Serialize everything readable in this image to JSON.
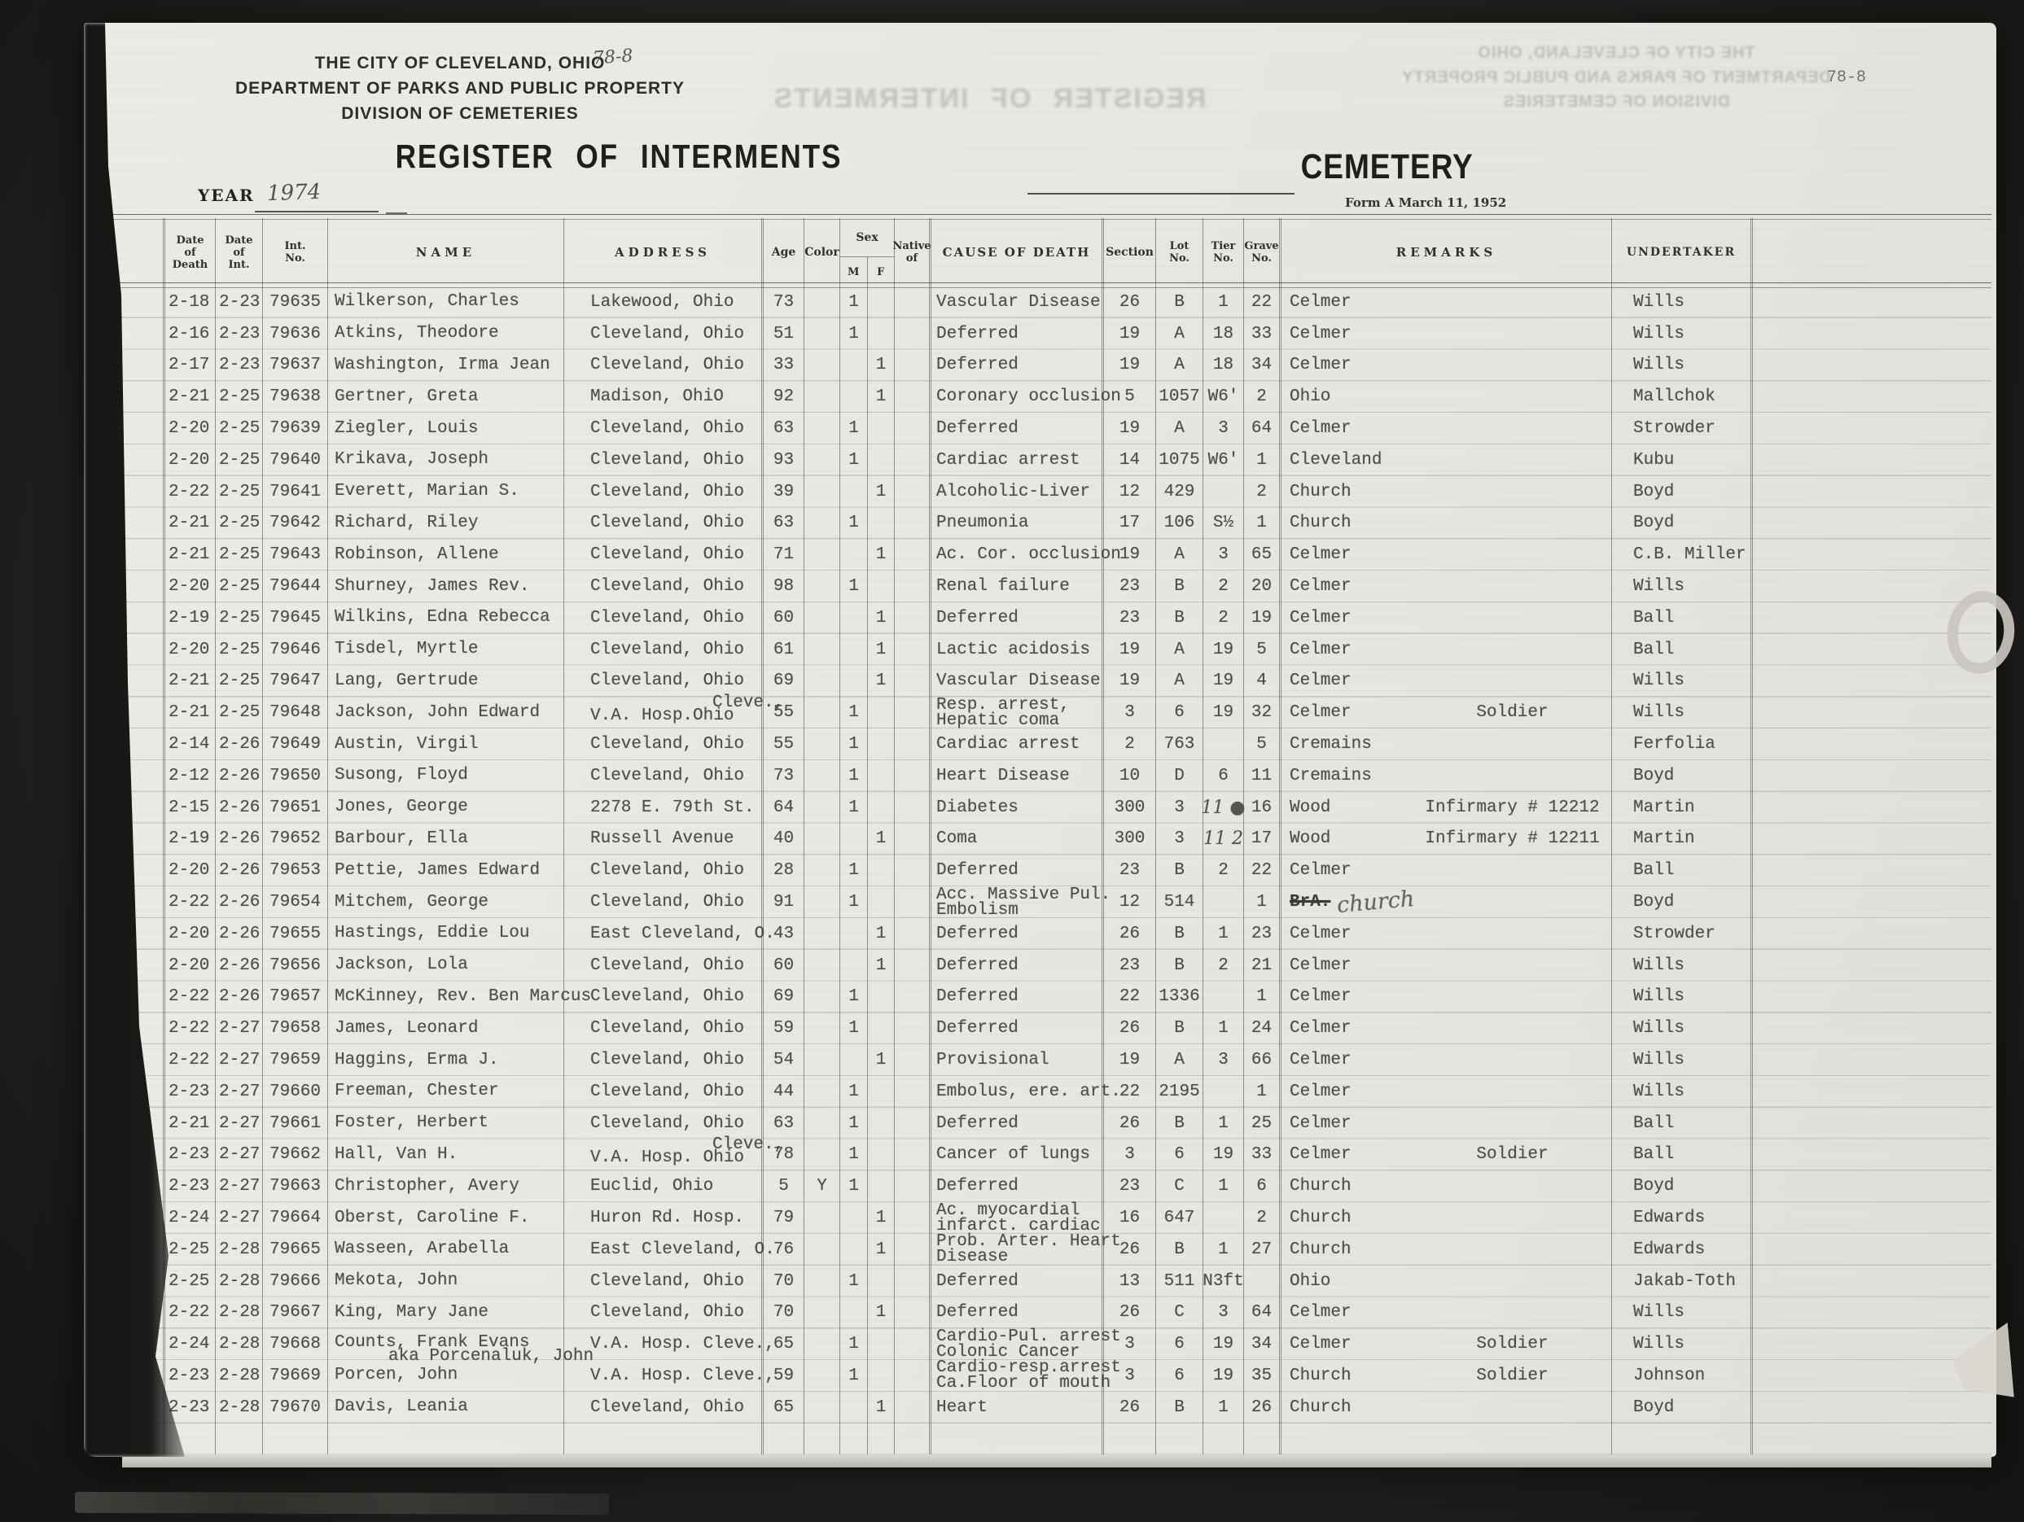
{
  "header": {
    "org_line1": "THE CITY OF CLEVELAND, OHIO",
    "org_line2": "DEPARTMENT OF PARKS AND PUBLIC PROPERTY",
    "org_line3": "DIVISION OF CEMETERIES",
    "page_code_handwritten": "78-8",
    "page_code_typed": "78-8",
    "register_title": "REGISTER OF INTERMENTS",
    "cemetery_label": "CEMETERY",
    "year_label": "YEAR",
    "year_value": "1974",
    "form_note": "Form A March 11, 1952"
  },
  "columns": {
    "date_of_death": [
      "Date",
      "of",
      "Death"
    ],
    "date_of_int": [
      "Date",
      "of",
      "Int."
    ],
    "int_no": [
      "Int.",
      "No."
    ],
    "name": "NAME",
    "address": "ADDRESS",
    "age": "Age",
    "color": "Color",
    "sex": "Sex",
    "sex_m": "M",
    "sex_f": "F",
    "native": [
      "Native",
      "of"
    ],
    "cause": "CAUSE OF DEATH",
    "section": "Section",
    "lot": [
      "Lot",
      "No."
    ],
    "tier": [
      "Tier",
      "No."
    ],
    "grave": [
      "Grave",
      "No."
    ],
    "remarks": "REMARKS",
    "undertaker": "UNDERTAKER"
  },
  "rows": [
    {
      "d1": "2-18",
      "d2": "2-23",
      "no": "79635",
      "nm": "Wilkerson, Charles",
      "ad": "Lakewood, Ohio",
      "ag": "73",
      "m": "1",
      "c1": "Vascular Disease",
      "se": "26",
      "lo": "B",
      "ti": "1",
      "gr": "22",
      "ce": "Celmer",
      "un": "Wills"
    },
    {
      "d1": "2-16",
      "d2": "2-23",
      "no": "79636",
      "nm": "Atkins, Theodore",
      "ad": "Cleveland, Ohio",
      "ag": "51",
      "m": "1",
      "c1": "Deferred",
      "se": "19",
      "lo": "A",
      "ti": "18",
      "gr": "33",
      "ce": "Celmer",
      "un": "Wills"
    },
    {
      "d1": "2-17",
      "d2": "2-23",
      "no": "79637",
      "nm": "Washington, Irma Jean",
      "ad": "Cleveland, Ohio",
      "ag": "33",
      "f": "1",
      "c1": "Deferred",
      "se": "19",
      "lo": "A",
      "ti": "18",
      "gr": "34",
      "ce": "Celmer",
      "un": "Wills"
    },
    {
      "d1": "2-21",
      "d2": "2-25",
      "no": "79638",
      "nm": "Gertner, Greta",
      "ad": "Madison, OhiO",
      "ag": "92",
      "f": "1",
      "c1": "Coronary occlusion",
      "se": "5",
      "lo": "1057",
      "ti": "W6'",
      "gr": "2",
      "ce": "Ohio",
      "un": "Mallchok"
    },
    {
      "d1": "2-20",
      "d2": "2-25",
      "no": "79639",
      "nm": "Ziegler, Louis",
      "ad": "Cleveland, Ohio",
      "ag": "63",
      "m": "1",
      "c1": "Deferred",
      "se": "19",
      "lo": "A",
      "ti": "3",
      "gr": "64",
      "ce": "Celmer",
      "un": "Strowder"
    },
    {
      "d1": "2-20",
      "d2": "2-25",
      "no": "79640",
      "nm": "Krikava, Joseph",
      "ad": "Cleveland, Ohio",
      "ag": "93",
      "m": "1",
      "c1": "Cardiac arrest",
      "se": "14",
      "lo": "1075",
      "ti": "W6'",
      "gr": "1",
      "ce": "Cleveland",
      "un": "Kubu"
    },
    {
      "d1": "2-22",
      "d2": "2-25",
      "no": "79641",
      "nm": "Everett, Marian S.",
      "ad": "Cleveland, Ohio",
      "ag": "39",
      "f": "1",
      "c1": "Alcoholic-Liver",
      "se": "12",
      "lo": "429",
      "gr": "2",
      "ce": "Church",
      "un": "Boyd"
    },
    {
      "d1": "2-21",
      "d2": "2-25",
      "no": "79642",
      "nm": "Richard, Riley",
      "ad": "Cleveland, Ohio",
      "ag": "63",
      "m": "1",
      "c1": "Pneumonia",
      "se": "17",
      "lo": "106",
      "ti": "S½",
      "gr": "1",
      "ce": "Church",
      "un": "Boyd"
    },
    {
      "d1": "2-21",
      "d2": "2-25",
      "no": "79643",
      "nm": "Robinson, Allene",
      "ad": "Cleveland, Ohio",
      "ag": "71",
      "f": "1",
      "c1": "Ac. Cor. occlusion",
      "se": "19",
      "lo": "A",
      "ti": "3",
      "gr": "65",
      "ce": "Celmer",
      "un": "C.B. Miller"
    },
    {
      "d1": "2-20",
      "d2": "2-25",
      "no": "79644",
      "nm": "Shurney, James Rev.",
      "ad": "Cleveland, Ohio",
      "ag": "98",
      "m": "1",
      "c1": "Renal failure",
      "se": "23",
      "lo": "B",
      "ti": "2",
      "gr": "20",
      "ce": "Celmer",
      "un": "Wills"
    },
    {
      "d1": "2-19",
      "d2": "2-25",
      "no": "79645",
      "nm": "Wilkins, Edna Rebecca",
      "ad": "Cleveland, Ohio",
      "ag": "60",
      "f": "1",
      "c1": "Deferred",
      "se": "23",
      "lo": "B",
      "ti": "2",
      "gr": "19",
      "ce": "Celmer",
      "un": "Ball"
    },
    {
      "d1": "2-20",
      "d2": "2-25",
      "no": "79646",
      "nm": "Tisdel, Myrtle",
      "ad": "Cleveland, Ohio",
      "ag": "61",
      "f": "1",
      "c1": "Lactic acidosis",
      "se": "19",
      "lo": "A",
      "ti": "19",
      "gr": "5",
      "ce": "Celmer",
      "un": "Ball"
    },
    {
      "d1": "2-21",
      "d2": "2-25",
      "no": "79647",
      "nm": "Lang, Gertrude",
      "ad": "Cleveland, Ohio",
      "ag": "69",
      "f": "1",
      "c1": "Vascular Disease",
      "se": "19",
      "lo": "A",
      "ti": "19",
      "gr": "4",
      "ce": "Celmer",
      "un": "Wills"
    },
    {
      "d1": "2-21",
      "d2": "2-25",
      "no": "79648",
      "nm": "Jackson, John Edward",
      "ap": "Cleve.,",
      "ad": "V.A. Hosp.Ohio",
      "ag": "55",
      "m": "1",
      "c1": "Resp. arrest,",
      "c2": "Hepatic coma",
      "se": "3",
      "lo": "6",
      "ti": "19",
      "gr": "32",
      "ce": "Celmer",
      "nt": "Soldier",
      "un": "Wills"
    },
    {
      "d1": "2-14",
      "d2": "2-26",
      "no": "79649",
      "nm": "Austin, Virgil",
      "ad": "Cleveland, Ohio",
      "ag": "55",
      "m": "1",
      "c1": "Cardiac arrest",
      "se": "2",
      "lo": "763",
      "gr": "5",
      "ce": "Cremains",
      "un": "Ferfolia"
    },
    {
      "d1": "2-12",
      "d2": "2-26",
      "no": "79650",
      "nm": "Susong, Floyd",
      "ad": "Cleveland, Ohio",
      "ag": "73",
      "m": "1",
      "c1": "Heart Disease",
      "se": "10",
      "lo": "D",
      "ti": "6",
      "gr": "11",
      "ce": "Cremains",
      "un": "Boyd"
    },
    {
      "d1": "2-15",
      "d2": "2-26",
      "no": "79651",
      "nm": "Jones, George",
      "ad": "2278 E. 79th St.",
      "ag": "64",
      "m": "1",
      "c1": "Diabetes",
      "se": "300",
      "lo": "3",
      "ti": "11 ●",
      "th": true,
      "gr": "16",
      "ce": "Wood",
      "nt": "Infirmary # 12212",
      "un": "Martin"
    },
    {
      "d1": "2-19",
      "d2": "2-26",
      "no": "79652",
      "nm": "Barbour, Ella",
      "ad": "Russell Avenue",
      "ag": "40",
      "f": "1",
      "c1": "Coma",
      "se": "300",
      "lo": "3",
      "ti": "11 2",
      "th": true,
      "gr": "17",
      "ce": "Wood",
      "nt": "Infirmary # 12211",
      "un": "Martin"
    },
    {
      "d1": "2-20",
      "d2": "2-26",
      "no": "79653",
      "nm": "Pettie, James Edward",
      "ad": "Cleveland, Ohio",
      "ag": "28",
      "m": "1",
      "c1": "Deferred",
      "se": "23",
      "lo": "B",
      "ti": "2",
      "gr": "22",
      "ce": "Celmer",
      "un": "Ball"
    },
    {
      "d1": "2-22",
      "d2": "2-26",
      "no": "79654",
      "nm": "Mitchem, George",
      "ad": "Cleveland, Ohio",
      "ag": "91",
      "m": "1",
      "c1": "Acc. Massive Pul.",
      "c2": "Embolism",
      "se": "12",
      "lo": "514",
      "gr": "1",
      "cs": "BrA.",
      "ch": "church",
      "un": "Boyd"
    },
    {
      "d1": "2-20",
      "d2": "2-26",
      "no": "79655",
      "nm": "Hastings, Eddie Lou",
      "ad": "East Cleveland, O.",
      "ag": "43",
      "f": "1",
      "c1": "Deferred",
      "se": "26",
      "lo": "B",
      "ti": "1",
      "gr": "23",
      "ce": "Celmer",
      "un": "Strowder"
    },
    {
      "d1": "2-20",
      "d2": "2-26",
      "no": "79656",
      "nm": "Jackson, Lola",
      "ad": "Cleveland, Ohio",
      "ag": "60",
      "f": "1",
      "c1": "Deferred",
      "se": "23",
      "lo": "B",
      "ti": "2",
      "gr": "21",
      "ce": "Celmer",
      "un": "Wills"
    },
    {
      "d1": "2-22",
      "d2": "2-26",
      "no": "79657",
      "nm": "McKinney, Rev. Ben Marcus",
      "ad": "Cleveland, Ohio",
      "ag": "69",
      "m": "1",
      "c1": "Deferred",
      "se": "22",
      "lo": "1336",
      "gr": "1",
      "ce": "Celmer",
      "un": "Wills"
    },
    {
      "d1": "2-22",
      "d2": "2-27",
      "no": "79658",
      "nm": "James, Leonard",
      "ad": "Cleveland, Ohio",
      "ag": "59",
      "m": "1",
      "c1": "Deferred",
      "se": "26",
      "lo": "B",
      "ti": "1",
      "gr": "24",
      "ce": "Celmer",
      "un": "Wills"
    },
    {
      "d1": "2-22",
      "d2": "2-27",
      "no": "79659",
      "nm": "Haggins, Erma J.",
      "ad": "Cleveland, Ohio",
      "ag": "54",
      "f": "1",
      "c1": "Provisional",
      "se": "19",
      "lo": "A",
      "ti": "3",
      "gr": "66",
      "ce": "Celmer",
      "un": "Wills"
    },
    {
      "d1": "2-23",
      "d2": "2-27",
      "no": "79660",
      "nm": "Freeman, Chester",
      "ad": "Cleveland, Ohio",
      "ag": "44",
      "m": "1",
      "c1": "Embolus, ere. art.",
      "se": "22",
      "lo": "2195",
      "gr": "1",
      "ce": "Celmer",
      "un": "Wills"
    },
    {
      "d1": "2-21",
      "d2": "2-27",
      "no": "79661",
      "nm": "Foster, Herbert",
      "ad": "Cleveland, Ohio",
      "ag": "63",
      "m": "1",
      "c1": "Deferred",
      "se": "26",
      "lo": "B",
      "ti": "1",
      "gr": "25",
      "ce": "Celmer",
      "un": "Ball"
    },
    {
      "d1": "2-23",
      "d2": "2-27",
      "no": "79662",
      "nm": "Hall, Van H.",
      "ap": "Cleve.,",
      "ad": "V.A. Hosp. Ohio",
      "ag": "78",
      "m": "1",
      "c1": "Cancer of lungs",
      "se": "3",
      "lo": "6",
      "ti": "19",
      "gr": "33",
      "ce": "Celmer",
      "nt": "Soldier",
      "un": "Ball"
    },
    {
      "d1": "2-23",
      "d2": "2-27",
      "no": "79663",
      "nm": "Christopher, Avery",
      "ad": "Euclid, Ohio",
      "ag": "5",
      "co": "Y",
      "m": "1",
      "c1": "Deferred",
      "se": "23",
      "lo": "C",
      "ti": "1",
      "gr": "6",
      "ce": "Church",
      "un": "Boyd"
    },
    {
      "d1": "2-24",
      "d2": "2-27",
      "no": "79664",
      "nm": "Oberst, Caroline F.",
      "ad": "Huron Rd. Hosp.",
      "ag": "79",
      "f": "1",
      "c1": "Ac. myocardial",
      "c2": "infarct. cardiac",
      "se": "16",
      "lo": "647",
      "gr": "2",
      "ce": "Church",
      "un": "Edwards"
    },
    {
      "d1": "2-25",
      "d2": "2-28",
      "no": "79665",
      "nm": "Wasseen, Arabella",
      "ad": "East Cleveland, O.",
      "ag": "76",
      "f": "1",
      "c1": "Prob. Arter. Heart",
      "c2": "Disease",
      "se": "26",
      "lo": "B",
      "ti": "1",
      "gr": "27",
      "ce": "Church",
      "un": "Edwards"
    },
    {
      "d1": "2-25",
      "d2": "2-28",
      "no": "79666",
      "nm": "Mekota, John",
      "ad": "Cleveland, Ohio",
      "ag": "70",
      "m": "1",
      "c1": "Deferred",
      "se": "13",
      "lo": "511",
      "ti": "N3ft",
      "ce": "Ohio",
      "un": "Jakab-Toth"
    },
    {
      "d1": "2-22",
      "d2": "2-28",
      "no": "79667",
      "nm": "King, Mary Jane",
      "ad": "Cleveland, Ohio",
      "ag": "70",
      "f": "1",
      "c1": "Deferred",
      "se": "26",
      "lo": "C",
      "ti": "3",
      "gr": "64",
      "ce": "Celmer",
      "un": "Wills"
    },
    {
      "d1": "2-24",
      "d2": "2-28",
      "no": "79668",
      "nm": "Counts, Frank Evans",
      "nm2": "aka Porcenaluk, John",
      "ad": "V.A. Hosp. Cleve.,",
      "ag": "65",
      "m": "1",
      "c1": "Cardio-Pul. arrest",
      "c2": "Colonic Cancer",
      "se": "3",
      "lo": "6",
      "ti": "19",
      "gr": "34",
      "ce": "Celmer",
      "nt": "Soldier",
      "un": "Wills"
    },
    {
      "d1": "2-23",
      "d2": "2-28",
      "no": "79669",
      "nm": "Porcen, John",
      "ad": "V.A. Hosp. Cleve.,",
      "ag": "59",
      "m": "1",
      "c1": "Cardio-resp.arrest",
      "c2": "Ca.Floor of mouth",
      "se": "3",
      "lo": "6",
      "ti": "19",
      "gr": "35",
      "ce": "Church",
      "nt": "Soldier",
      "un": "Johnson"
    },
    {
      "d1": "2-23",
      "d2": "2-28",
      "no": "79670",
      "nm": "Davis, Leania",
      "ad": "Cleveland, Ohio",
      "ag": "65",
      "f": "1",
      "c1": "Heart",
      "se": "26",
      "lo": "B",
      "ti": "1",
      "gr": "26",
      "ce": "Church",
      "un": "Boyd"
    }
  ]
}
